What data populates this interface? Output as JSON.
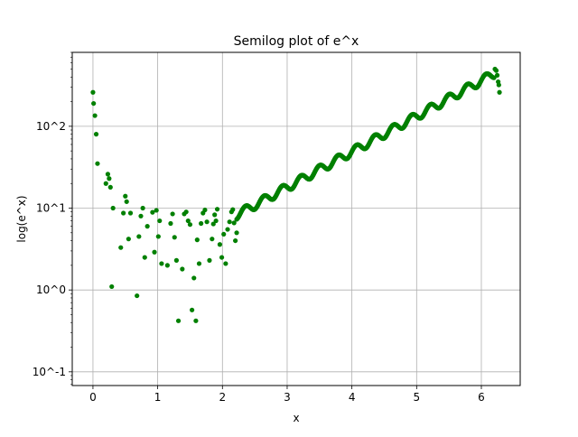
{
  "chart_data": {
    "type": "scatter",
    "title": "Semilog plot of e^x",
    "xlabel": "x",
    "ylabel": "log(e^x)",
    "xlim": [
      -0.32,
      6.6
    ],
    "ylim": [
      0.068,
      800
    ],
    "yscale": "log",
    "grid": true,
    "marker_color": "#008000",
    "x_ticks": [
      0,
      1,
      2,
      3,
      4,
      5,
      6
    ],
    "x_tick_labels": [
      "0",
      "1",
      "2",
      "3",
      "4",
      "5",
      "6"
    ],
    "y_ticks": [
      0.1,
      1,
      10,
      100
    ],
    "y_tick_labels": [
      "10^-1",
      "10^0",
      "10^1",
      "10^2"
    ],
    "series": [
      {
        "x": [
          0.0,
          0.01,
          0.03,
          0.05,
          0.07,
          0.2,
          0.23,
          0.25,
          0.27,
          0.29,
          0.31,
          0.43,
          0.47,
          0.5,
          0.52,
          0.55,
          0.58,
          0.68,
          0.71,
          0.74,
          0.77,
          0.8,
          0.84,
          0.92,
          0.95,
          0.98,
          1.01,
          1.03,
          1.06,
          1.15,
          1.2,
          1.23,
          1.26,
          1.29,
          1.32,
          1.38,
          1.41,
          1.44,
          1.47,
          1.5,
          1.53,
          1.56,
          1.59,
          1.61,
          1.64,
          1.67,
          1.7,
          1.73,
          1.76,
          1.8,
          1.84,
          1.86,
          1.88,
          1.9,
          1.92,
          1.96,
          1.99,
          2.02,
          2.05,
          2.08,
          2.11,
          2.14,
          2.16,
          2.18,
          2.2,
          2.22
        ],
        "y": [
          260,
          190,
          135,
          80,
          35,
          20,
          26,
          23,
          18,
          1.1,
          10,
          3.3,
          8.7,
          14,
          12,
          4.2,
          8.7,
          0.85,
          4.5,
          8,
          10,
          2.5,
          6,
          8.9,
          2.9,
          9.4,
          4.5,
          7,
          2.1,
          2,
          6.5,
          8.5,
          4.4,
          2.3,
          0.42,
          1.8,
          8.5,
          9,
          7,
          6.3,
          0.57,
          1.4,
          0.42,
          4.1,
          2.1,
          6.5,
          8.7,
          9.5,
          6.8,
          2.3,
          4.2,
          6.4,
          8.3,
          7,
          9.7,
          3.6,
          2.5,
          4.8,
          2.1,
          5.5,
          6.8,
          9,
          9.6,
          6.6,
          4,
          5
        ]
      }
    ]
  }
}
